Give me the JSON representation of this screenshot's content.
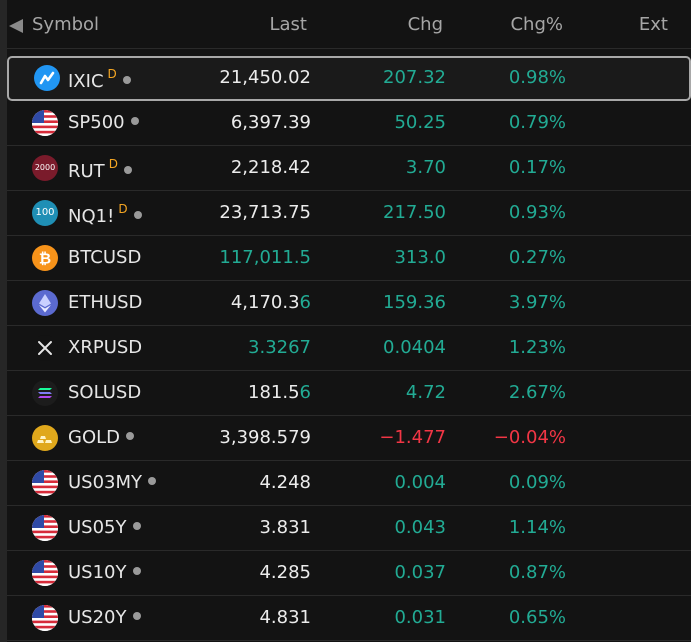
{
  "header": {
    "symbol": "Symbol",
    "last": "Last",
    "chg": "Chg",
    "chgp": "Chg%",
    "ext": "Ext"
  },
  "colors": {
    "positive": "#22ab94",
    "negative": "#f23645",
    "delay_badge": "#f5a623"
  },
  "rows": [
    {
      "symbol": "IXIC",
      "badge": "D",
      "last": "21,450.02",
      "chg": "207.32",
      "chgp": "0.98%",
      "icon": "nasdaq-icon"
    },
    {
      "symbol": "SP500",
      "badge": "",
      "last": "6,397.39",
      "chg": "50.25",
      "chgp": "0.79%",
      "icon": "us-flag-icon"
    },
    {
      "symbol": "RUT",
      "badge": "D",
      "last": "2,218.42",
      "chg": "3.70",
      "chgp": "0.17%",
      "icon": "russell-2000-icon",
      "icon_text": "2000"
    },
    {
      "symbol": "NQ1!",
      "badge": "D",
      "last": "23,713.75",
      "chg": "217.50",
      "chgp": "0.93%",
      "icon": "nasdaq-100-icon",
      "icon_text": "100"
    },
    {
      "symbol": "BTCUSD",
      "badge": "",
      "last_head": "117,011.5",
      "last_tail": "",
      "chg": "313.0",
      "chgp": "0.27%",
      "icon": "bitcoin-icon"
    },
    {
      "symbol": "ETHUSD",
      "badge": "",
      "last_head": "4,170.3",
      "last_tail": "6",
      "chg": "159.36",
      "chgp": "3.97%",
      "icon": "ethereum-icon"
    },
    {
      "symbol": "XRPUSD",
      "badge": "",
      "last_head": "3.3267",
      "last_tail": "",
      "chg": "0.0404",
      "chgp": "1.23%",
      "icon": "xrp-icon"
    },
    {
      "symbol": "SOLUSD",
      "badge": "",
      "last_head": "181.5",
      "last_tail": "6",
      "chg": "4.72",
      "chgp": "2.67%",
      "icon": "solana-icon"
    },
    {
      "symbol": "GOLD",
      "badge": "",
      "last": "3,398.579",
      "chg": "−1.477",
      "chgp": "−0.04%",
      "icon": "gold-bars-icon"
    },
    {
      "symbol": "US03MY",
      "badge": "",
      "last": "4.248",
      "chg": "0.004",
      "chgp": "0.09%",
      "icon": "us-flag-icon"
    },
    {
      "symbol": "US05Y",
      "badge": "",
      "last": "3.831",
      "chg": "0.043",
      "chgp": "1.14%",
      "icon": "us-flag-icon"
    },
    {
      "symbol": "US10Y",
      "badge": "",
      "last": "4.285",
      "chg": "0.037",
      "chgp": "0.87%",
      "icon": "us-flag-icon"
    },
    {
      "symbol": "US20Y",
      "badge": "",
      "last": "4.831",
      "chg": "0.031",
      "chgp": "0.65%",
      "icon": "us-flag-icon"
    }
  ]
}
